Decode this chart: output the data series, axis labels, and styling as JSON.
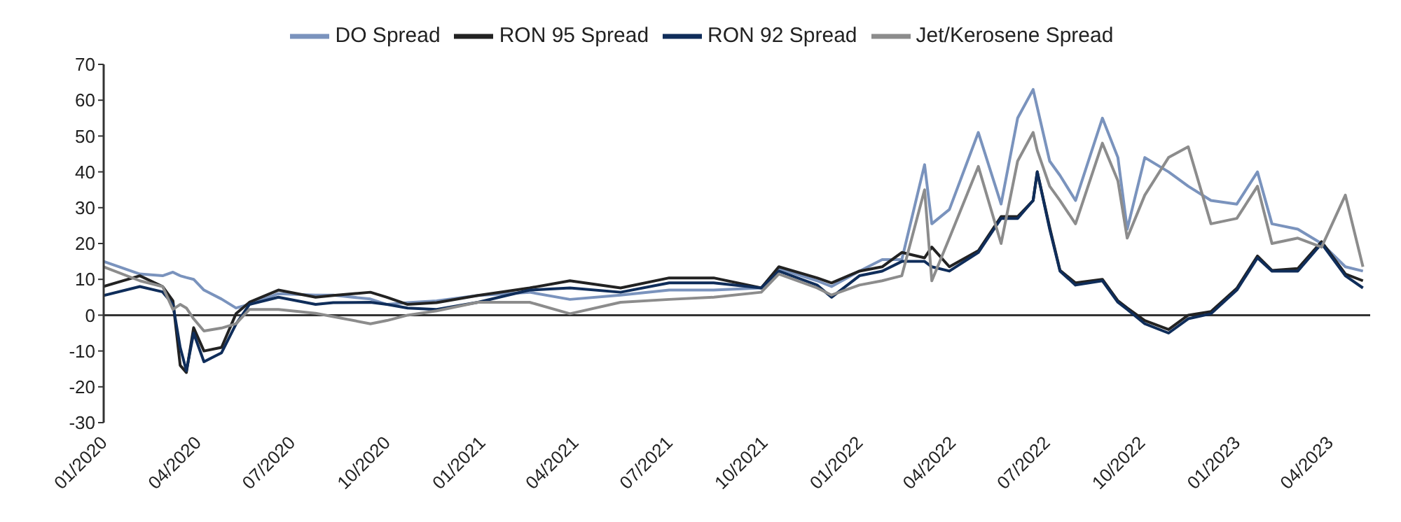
{
  "chart_data": {
    "type": "line",
    "x": [
      "2020-01-01",
      "2020-02-05",
      "2020-02-27",
      "2020-03-08",
      "2020-03-15",
      "2020-03-21",
      "2020-03-28",
      "2020-04-07",
      "2020-04-24",
      "2020-05-08",
      "2020-05-21",
      "2020-06-18",
      "2020-07-24",
      "2020-08-10",
      "2020-09-15",
      "2020-10-01",
      "2020-10-21",
      "2020-11-18",
      "2020-12-28",
      "2021-02-16",
      "2021-03-27",
      "2021-05-15",
      "2021-07-01",
      "2021-08-13",
      "2021-09-28",
      "2021-10-15",
      "2021-11-21",
      "2021-12-05",
      "2022-01-01",
      "2022-01-23",
      "2022-02-11",
      "2022-03-05",
      "2022-03-12",
      "2022-03-29",
      "2022-04-26",
      "2022-05-18",
      "2022-06-03",
      "2022-06-18",
      "2022-06-22",
      "2022-07-04",
      "2022-07-14",
      "2022-07-29",
      "2022-08-24",
      "2022-09-08",
      "2022-09-17",
      "2022-10-04",
      "2022-10-27",
      "2022-11-15",
      "2022-12-07",
      "2023-01-01",
      "2023-01-21",
      "2023-02-04",
      "2023-03-01",
      "2023-03-24",
      "2023-04-16",
      "2023-05-03"
    ],
    "series": [
      {
        "name": "DO Spread",
        "color": "#7a93bd",
        "values": [
          15,
          11.5,
          11,
          12,
          11,
          10.5,
          10,
          7,
          4.5,
          2,
          3,
          6,
          5.6,
          5.6,
          4.5,
          3,
          3.5,
          4,
          5.5,
          6.4,
          4.4,
          5.6,
          7,
          7,
          7.6,
          13,
          9.6,
          8,
          12.3,
          15.5,
          15.5,
          42,
          25.5,
          29.5,
          51,
          31,
          55,
          63,
          58,
          43,
          39,
          32,
          55,
          44,
          24,
          44,
          40,
          36,
          32,
          31,
          40,
          25.5,
          24,
          20,
          13.5,
          12.3
        ]
      },
      {
        "name": "RON 95 Spread",
        "color": "#222222",
        "values": [
          8,
          11,
          8,
          4,
          -14,
          -16,
          -3.5,
          -10,
          -9,
          0.4,
          3.6,
          7,
          5,
          5.5,
          6.4,
          5,
          3,
          3.5,
          5.5,
          7.6,
          9.6,
          7.6,
          10.4,
          10.4,
          7.6,
          13.5,
          10.4,
          9,
          12.3,
          13.5,
          17.5,
          16,
          19,
          13.5,
          18,
          27.5,
          27.5,
          32,
          40,
          24.5,
          12.5,
          9,
          10,
          4,
          2,
          -1.5,
          -4,
          0,
          1,
          7.5,
          16.5,
          12.5,
          13,
          20.5,
          11.5,
          9.6
        ]
      },
      {
        "name": "RON 92 Spread",
        "color": "#0f2d5a",
        "values": [
          5.5,
          8,
          6.5,
          3,
          -9,
          -15.5,
          -5,
          -13,
          -10.5,
          -2.5,
          3,
          5,
          3,
          3.5,
          3.6,
          3,
          2,
          1.6,
          3.6,
          7,
          7.6,
          6.4,
          9,
          9,
          7.6,
          12.3,
          8.4,
          5,
          11,
          12.3,
          15,
          15,
          13.5,
          12.3,
          17.5,
          27,
          27,
          32,
          40,
          24,
          12.3,
          8.4,
          9.6,
          3.6,
          1.6,
          -2.4,
          -5,
          -1,
          0.4,
          7,
          16,
          12.3,
          12.3,
          20,
          11,
          7.6
        ]
      },
      {
        "name": "Jet/Kerosene Spread",
        "color": "#8c8c8c",
        "values": [
          13.5,
          9.6,
          8,
          1.6,
          3,
          2,
          -1,
          -4.4,
          -3.6,
          -2.4,
          1.6,
          1.6,
          0.5,
          -0.4,
          -2.4,
          -1.5,
          0,
          1.2,
          3.6,
          3.6,
          0.4,
          3.6,
          4.4,
          5,
          6.4,
          11.5,
          7.6,
          5.6,
          8.4,
          9.6,
          11,
          35,
          9.6,
          21.5,
          41.5,
          20,
          43,
          51,
          46,
          36,
          32,
          25.5,
          48,
          37.5,
          21.5,
          33.5,
          44,
          47,
          25.5,
          27,
          36,
          20,
          21.5,
          19,
          33.5,
          13.5
        ]
      }
    ],
    "xlim": [
      "2020-01-01",
      "2023-05-10"
    ],
    "xticks": [
      {
        "value": "2020-01",
        "label": "01/2020"
      },
      {
        "value": "2020-04",
        "label": "04/2020"
      },
      {
        "value": "2020-07",
        "label": "07/2020"
      },
      {
        "value": "2020-10",
        "label": "10/2020"
      },
      {
        "value": "2021-01",
        "label": "01/2021"
      },
      {
        "value": "2021-04",
        "label": "04/2021"
      },
      {
        "value": "2021-07",
        "label": "07/2021"
      },
      {
        "value": "2021-10",
        "label": "10/2021"
      },
      {
        "value": "2022-01",
        "label": "01/2022"
      },
      {
        "value": "2022-04",
        "label": "04/2022"
      },
      {
        "value": "2022-07",
        "label": "07/2022"
      },
      {
        "value": "2022-10",
        "label": "10/2022"
      },
      {
        "value": "2023-01",
        "label": "01/2023"
      },
      {
        "value": "2023-04",
        "label": "04/2023"
      }
    ],
    "ylim": [
      -30,
      70
    ],
    "yticks": [
      -30,
      -20,
      -10,
      0,
      10,
      20,
      30,
      40,
      50,
      60,
      70
    ],
    "ref_lines": [
      {
        "axis": "y",
        "value": 0,
        "color": "#333333"
      }
    ],
    "legend": "top",
    "line_style": "solid",
    "marker": "none"
  }
}
